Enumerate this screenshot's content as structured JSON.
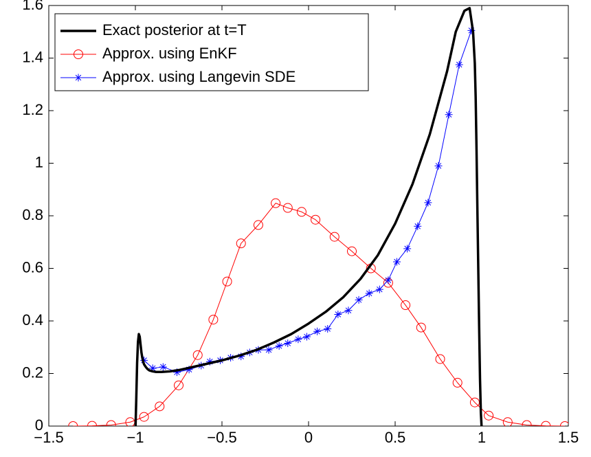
{
  "chart_data": {
    "type": "line",
    "title": "",
    "xlabel": "",
    "ylabel": "",
    "xlim": [
      -1.5,
      1.5
    ],
    "ylim": [
      0,
      1.6
    ],
    "xticks": [
      -1.5,
      -1,
      -0.5,
      0,
      0.5,
      1,
      1.5
    ],
    "xtick_labels": [
      "−1.5",
      "−1",
      "−0.5",
      "0",
      "0.5",
      "1",
      "1.5"
    ],
    "yticks": [
      0,
      0.2,
      0.4,
      0.6,
      0.8,
      1,
      1.2,
      1.4,
      1.6
    ],
    "ytick_labels": [
      "0",
      "0.2",
      "0.4",
      "0.6",
      "0.8",
      "1",
      "1.2",
      "1.4",
      "1.6"
    ],
    "grid": false,
    "legend_position": "top-left",
    "series": [
      {
        "name": "Exact posterior at t=T",
        "color": "#000000",
        "marker": "none",
        "x": [
          -0.999,
          -0.995,
          -0.99,
          -0.985,
          -0.98,
          -0.975,
          -0.97,
          -0.965,
          -0.96,
          -0.955,
          -0.95,
          -0.94,
          -0.93,
          -0.92,
          -0.9,
          -0.88,
          -0.85,
          -0.8,
          -0.75,
          -0.7,
          -0.6,
          -0.5,
          -0.4,
          -0.3,
          -0.2,
          -0.1,
          0,
          0.1,
          0.2,
          0.3,
          0.4,
          0.5,
          0.6,
          0.7,
          0.8,
          0.85,
          0.9,
          0.93,
          0.95,
          0.96,
          0.965,
          0.97,
          0.975,
          0.98,
          0.985,
          0.99,
          0.995,
          0.999
        ],
        "y": [
          0,
          0.1,
          0.24,
          0.32,
          0.35,
          0.34,
          0.31,
          0.28,
          0.26,
          0.245,
          0.235,
          0.225,
          0.217,
          0.212,
          0.208,
          0.206,
          0.206,
          0.208,
          0.213,
          0.22,
          0.235,
          0.25,
          0.268,
          0.29,
          0.318,
          0.35,
          0.39,
          0.435,
          0.49,
          0.56,
          0.65,
          0.77,
          0.92,
          1.11,
          1.35,
          1.5,
          1.58,
          1.59,
          1.5,
          1.38,
          1.25,
          1.05,
          0.82,
          0.6,
          0.38,
          0.18,
          0.05,
          0
        ]
      },
      {
        "name": "Approx. using EnKF",
        "color": "#ff0000",
        "marker": "circle",
        "x": [
          -1.36,
          -1.25,
          -1.14,
          -1.03,
          -0.95,
          -0.86,
          -0.75,
          -0.64,
          -0.55,
          -0.47,
          -0.39,
          -0.29,
          -0.19,
          -0.12,
          -0.04,
          0.04,
          0.15,
          0.25,
          0.36,
          0.46,
          0.56,
          0.65,
          0.76,
          0.86,
          0.96,
          1.04,
          1.15,
          1.26,
          1.37,
          1.48
        ],
        "y": [
          0.0,
          0.001,
          0.004,
          0.015,
          0.035,
          0.075,
          0.155,
          0.27,
          0.405,
          0.55,
          0.695,
          0.765,
          0.848,
          0.83,
          0.815,
          0.785,
          0.72,
          0.665,
          0.6,
          0.545,
          0.46,
          0.375,
          0.255,
          0.165,
          0.09,
          0.04,
          0.015,
          0.004,
          0.001,
          0.0
        ]
      },
      {
        "name": "Approx. using Langevin SDE",
        "color": "#0000ff",
        "marker": "asterisk",
        "x": [
          -0.95,
          -0.9,
          -0.84,
          -0.76,
          -0.69,
          -0.62,
          -0.57,
          -0.51,
          -0.45,
          -0.39,
          -0.34,
          -0.29,
          -0.23,
          -0.17,
          -0.12,
          -0.06,
          -0.01,
          0.05,
          0.11,
          0.17,
          0.23,
          0.29,
          0.35,
          0.41,
          0.46,
          0.51,
          0.57,
          0.63,
          0.69,
          0.75,
          0.81,
          0.87,
          0.94
        ],
        "y": [
          0.25,
          0.22,
          0.225,
          0.205,
          0.215,
          0.23,
          0.245,
          0.25,
          0.26,
          0.265,
          0.28,
          0.29,
          0.29,
          0.305,
          0.315,
          0.33,
          0.34,
          0.36,
          0.37,
          0.425,
          0.44,
          0.48,
          0.505,
          0.52,
          0.555,
          0.625,
          0.675,
          0.76,
          0.85,
          0.99,
          1.185,
          1.375,
          1.505
        ]
      }
    ]
  }
}
